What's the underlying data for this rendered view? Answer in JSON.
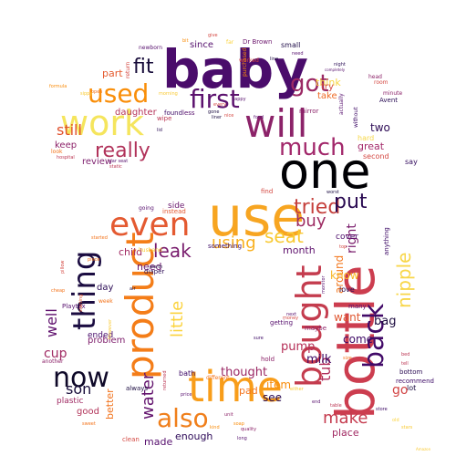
{
  "words": [
    {
      "text": "baby",
      "color": "#4a0c6b"
    },
    {
      "text": "one",
      "color": "#000004"
    },
    {
      "text": "use",
      "color": "#f7a521"
    },
    {
      "text": "bottle",
      "color": "#cc3d4f"
    },
    {
      "text": "time",
      "color": "#f89d1a"
    },
    {
      "text": "work",
      "color": "#f5e55d"
    },
    {
      "text": "will",
      "color": "#8c2369"
    },
    {
      "text": "product",
      "color": "#f47d18"
    },
    {
      "text": "bought",
      "color": "#c43c4e"
    },
    {
      "text": "even",
      "color": "#e45a31"
    },
    {
      "text": "thing",
      "color": "#1b0c41"
    },
    {
      "text": "used",
      "color": "#f98e09"
    },
    {
      "text": "first",
      "color": "#5c126e"
    },
    {
      "text": "much",
      "color": "#a2286b"
    },
    {
      "text": "back",
      "color": "#420a68"
    },
    {
      "text": "now",
      "color": "#0e0828"
    },
    {
      "text": "also",
      "color": "#f07f1b"
    },
    {
      "text": "got",
      "color": "#9b2964"
    },
    {
      "text": "fit",
      "color": "#160b39"
    },
    {
      "text": "really",
      "color": "#b1325a"
    },
    {
      "text": "tried",
      "color": "#c5403c"
    },
    {
      "text": "put",
      "color": "#2a0b52"
    },
    {
      "text": "nipple",
      "color": "#f8d648"
    },
    {
      "text": "buy",
      "color": "#9d2b62"
    },
    {
      "text": "using",
      "color": "#f9b01e"
    },
    {
      "text": "leak",
      "color": "#781c6d"
    },
    {
      "text": "seat",
      "color": "#f8c931"
    },
    {
      "text": "little",
      "color": "#fbd33e"
    },
    {
      "text": "water",
      "color": "#63146e"
    },
    {
      "text": "make",
      "color": "#c53c4f"
    },
    {
      "text": "tub",
      "color": "#b02e5b"
    },
    {
      "text": "right",
      "color": "#7a1d6d"
    },
    {
      "text": "well",
      "color": "#60126e"
    },
    {
      "text": "son",
      "color": "#170c3a"
    },
    {
      "text": "still",
      "color": "#e0522e"
    },
    {
      "text": "around",
      "color": "#f3781f"
    },
    {
      "text": "cup",
      "color": "#a02a63"
    },
    {
      "text": "two",
      "color": "#2e0c56"
    },
    {
      "text": "go",
      "color": "#d24444"
    },
    {
      "text": "bag",
      "color": "#1d0c40"
    },
    {
      "text": "pump",
      "color": "#b52f57"
    },
    {
      "text": "milk",
      "color": "#3b0964"
    },
    {
      "text": "thought",
      "color": "#9a2864"
    },
    {
      "text": "come",
      "color": "#3f0a66"
    },
    {
      "text": "want",
      "color": "#e05731"
    },
    {
      "text": "know",
      "color": "#f8b626"
    },
    {
      "text": "great",
      "color": "#a3296a"
    },
    {
      "text": "month",
      "color": "#5f136e"
    },
    {
      "text": "child",
      "color": "#a12a63"
    },
    {
      "text": "need",
      "color": "#6a166d"
    },
    {
      "text": "item",
      "color": "#f98c0a"
    },
    {
      "text": "pad",
      "color": "#f3731b"
    },
    {
      "text": "see",
      "color": "#280b53"
    },
    {
      "text": "enough",
      "color": "#2d0a58"
    },
    {
      "text": "made",
      "color": "#57106e"
    },
    {
      "text": "place",
      "color": "#a12a63"
    },
    {
      "text": "review",
      "color": "#7c1e6d"
    },
    {
      "text": "keep",
      "color": "#8d2269"
    },
    {
      "text": "daughter",
      "color": "#b63359"
    },
    {
      "text": "part",
      "color": "#e55c30"
    },
    {
      "text": "think",
      "color": "#f7d540"
    },
    {
      "text": "since",
      "color": "#54106d"
    },
    {
      "text": "take",
      "color": "#ee6a24"
    },
    {
      "text": "try",
      "color": "#d44842"
    },
    {
      "text": "day",
      "color": "#2b0b55"
    },
    {
      "text": "problem",
      "color": "#7e1e6c"
    },
    {
      "text": "good",
      "color": "#b13258"
    },
    {
      "text": "better",
      "color": "#f1731d"
    },
    {
      "text": "cover",
      "color": "#4b0c6b"
    },
    {
      "text": "side",
      "color": "#6b186e"
    },
    {
      "text": "ended",
      "color": "#450a69"
    },
    {
      "text": "plastic",
      "color": "#a02a63"
    },
    {
      "text": "small",
      "color": "#1f0c48"
    },
    {
      "text": "Dr Brown",
      "color": "#6d186e"
    },
    {
      "text": "second",
      "color": "#d44842"
    },
    {
      "text": "hard",
      "color": "#f6d746"
    },
    {
      "text": "love",
      "color": "#280b54"
    },
    {
      "text": "bath",
      "color": "#3c0965"
    },
    {
      "text": "lot",
      "color": "#1b0c41"
    },
    {
      "text": "say",
      "color": "#320a5e"
    },
    {
      "text": "bottom",
      "color": "#2a0b52"
    },
    {
      "text": "recommend",
      "color": "#3c0965"
    },
    {
      "text": "getting",
      "color": "#57106e"
    },
    {
      "text": "maybe",
      "color": "#8c2369"
    },
    {
      "text": "many",
      "color": "#57106e"
    },
    {
      "text": "wipe",
      "color": "#bc3754"
    },
    {
      "text": "found",
      "color": "#3c0965"
    },
    {
      "text": "less",
      "color": "#57106e"
    },
    {
      "text": "mirror",
      "color": "#8c2369"
    },
    {
      "text": "instead",
      "color": "#e35933"
    },
    {
      "text": "going",
      "color": "#57106e"
    },
    {
      "text": "diaper",
      "color": "#2b0b55"
    },
    {
      "text": "something",
      "color": "#3c0965"
    },
    {
      "text": "find",
      "color": "#d44842"
    },
    {
      "text": "always",
      "color": "#1b0c41"
    },
    {
      "text": "hold",
      "color": "#8c2369"
    },
    {
      "text": "clean",
      "color": "#d44842"
    },
    {
      "text": "Playtex",
      "color": "#57106e"
    },
    {
      "text": "anything",
      "color": "#3c0965"
    },
    {
      "text": "Avent",
      "color": "#280b54"
    },
    {
      "text": "room",
      "color": "#d44842"
    },
    {
      "text": "minute",
      "color": "#8c2369"
    },
    {
      "text": "newborn",
      "color": "#57106e"
    },
    {
      "text": "head",
      "color": "#8c2369"
    },
    {
      "text": "far",
      "color": "#fbd33e"
    },
    {
      "text": "actually",
      "color": "#57106e"
    },
    {
      "text": "without",
      "color": "#3c0965"
    },
    {
      "text": "static",
      "color": "#bc3754"
    },
    {
      "text": "car seat",
      "color": "#57106e"
    },
    {
      "text": "look",
      "color": "#f3731b"
    },
    {
      "text": "worked",
      "color": "#d44842"
    },
    {
      "text": "purchased",
      "color": "#f98c0a"
    },
    {
      "text": "line",
      "color": "#1b0c41"
    },
    {
      "text": "hospital",
      "color": "#bc3754"
    },
    {
      "text": "next",
      "color": "#57106e"
    },
    {
      "text": "return",
      "color": "#d44842"
    },
    {
      "text": "piece",
      "color": "#f3731b"
    },
    {
      "text": "cheap",
      "color": "#f3731b"
    },
    {
      "text": "another",
      "color": "#8c2369"
    },
    {
      "text": "week",
      "color": "#f3731b"
    },
    {
      "text": "starting",
      "color": "#e35933"
    },
    {
      "text": "husband",
      "color": "#f9c932"
    },
    {
      "text": "different",
      "color": "#f3731b"
    },
    {
      "text": "returned",
      "color": "#bc3754"
    },
    {
      "text": "price",
      "color": "#57106e"
    },
    {
      "text": "monitor",
      "color": "#57106e"
    },
    {
      "text": "money",
      "color": "#d44842"
    },
    {
      "text": "table",
      "color": "#bc3754"
    },
    {
      "text": "worth",
      "color": "#1b0c41"
    },
    {
      "text": "started",
      "color": "#f3731b"
    },
    {
      "text": "However",
      "color": "#f9c932"
    },
    {
      "text": "top",
      "color": "#d44842"
    },
    {
      "text": "formula",
      "color": "#f98c0a"
    },
    {
      "text": "air",
      "color": "#1b0c41"
    },
    {
      "text": "long",
      "color": "#57106e"
    },
    {
      "text": "quality",
      "color": "#8c2369"
    },
    {
      "text": "store",
      "color": "#3c0965"
    },
    {
      "text": "give",
      "color": "#d44842"
    },
    {
      "text": "bit",
      "color": "#f98c0a"
    },
    {
      "text": "Amazon",
      "color": "#f9c932"
    },
    {
      "text": "need",
      "color": "#57106e"
    },
    {
      "text": "worst",
      "color": "#1b0c41"
    },
    {
      "text": "night",
      "color": "#280b54"
    },
    {
      "text": "completely",
      "color": "#57106e"
    },
    {
      "text": "old",
      "color": "#fbd33e"
    },
    {
      "text": "tell",
      "color": "#bc3754"
    },
    {
      "text": "sure",
      "color": "#3c0965"
    },
    {
      "text": "morning",
      "color": "#f9c932"
    },
    {
      "text": "pillow",
      "color": "#d44842"
    },
    {
      "text": "sweet",
      "color": "#f3731b"
    },
    {
      "text": "soap",
      "color": "#f98c0a"
    },
    {
      "text": "either",
      "color": "#f9c932"
    },
    {
      "text": "end",
      "color": "#57106e"
    },
    {
      "text": "happy",
      "color": "#57106e"
    },
    {
      "text": "size",
      "color": "#f3731b"
    },
    {
      "text": "liner",
      "color": "#1b0c41"
    },
    {
      "text": "every",
      "color": "#d44842"
    },
    {
      "text": "bed",
      "color": "#bc3754"
    },
    {
      "text": "unit",
      "color": "#8c2369"
    },
    {
      "text": "kind",
      "color": "#f98c0a"
    },
    {
      "text": "gone",
      "color": "#1b0c41"
    },
    {
      "text": "food",
      "color": "#57106e"
    },
    {
      "text": "open",
      "color": "#f3731b"
    },
    {
      "text": "sippy",
      "color": "#f9c932"
    },
    {
      "text": "nice",
      "color": "#d44842"
    },
    {
      "text": "lid",
      "color": "#280b54"
    },
    {
      "text": "stars",
      "color": "#f9c932"
    }
  ]
}
